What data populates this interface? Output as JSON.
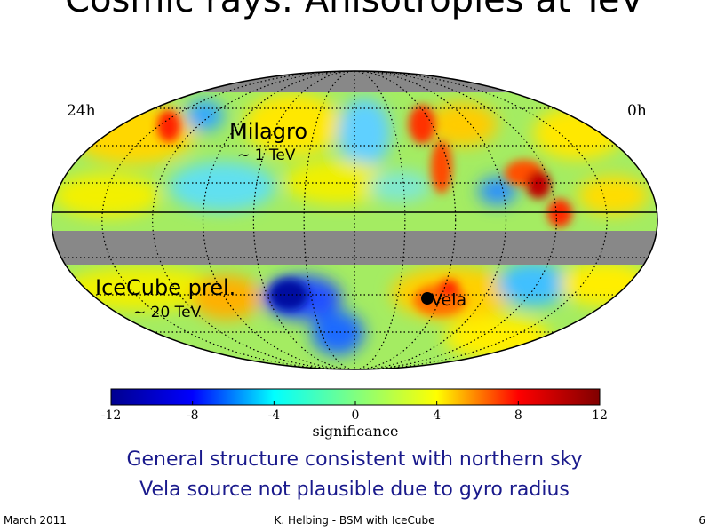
{
  "slide": {
    "title": "Cosmic rays: Anisotropies at TeV",
    "captions": [
      "General structure consistent with northern sky",
      "Vela source not plausible due to gyro radius"
    ],
    "footer": {
      "date": "March 2011",
      "center": "K. Helbing - BSM with IceCube",
      "page": "6"
    }
  },
  "chart_data": {
    "type": "heatmap",
    "projection": "mollweide",
    "ra_labels": {
      "left": "24h",
      "right": "0h"
    },
    "annotations": [
      {
        "id": "milagro",
        "label": "Milagro",
        "sublabel": "~ 1 TeV"
      },
      {
        "id": "icecube",
        "label": "IceCube prel.",
        "sublabel": "~ 20 TeV"
      },
      {
        "id": "vela",
        "label": "Vela"
      }
    ],
    "colorbar": {
      "label": "significance",
      "range": [
        -12,
        12
      ],
      "ticks": [
        -12,
        -8,
        -4,
        0,
        4,
        8,
        12
      ],
      "colors": [
        "#00008f",
        "#0000ff",
        "#00ffff",
        "#80ff80",
        "#ffff00",
        "#ff0000",
        "#800000"
      ]
    },
    "colors": {
      "mask": "#888888",
      "outline": "#000000",
      "vela_marker": "#000000"
    }
  }
}
